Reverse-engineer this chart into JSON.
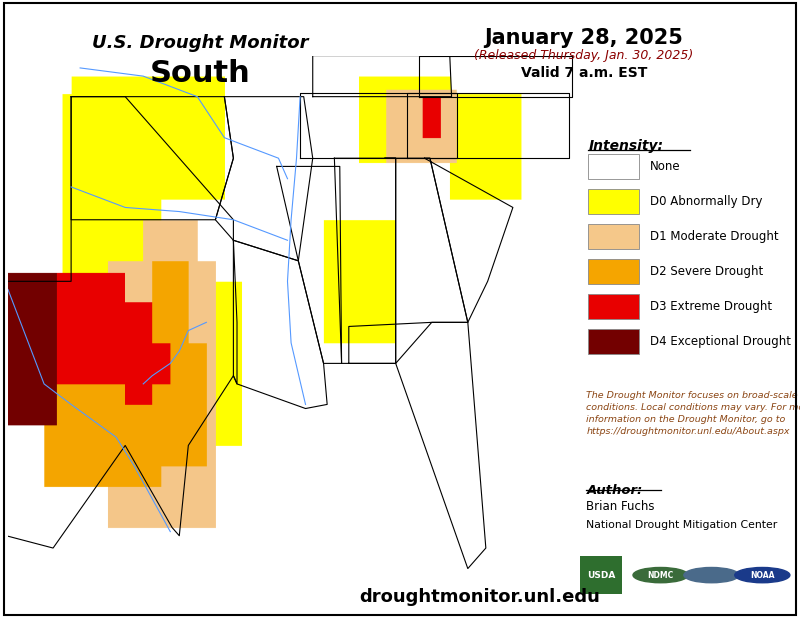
{
  "title_line1": "U.S. Drought Monitor",
  "title_line2": "South",
  "date_line1": "January 28, 2025",
  "date_line2": "(Released Thursday, Jan. 30, 2025)",
  "date_line3": "Valid 7 a.m. EST",
  "legend_title": "Intensity:",
  "legend_items": [
    {
      "label": "None",
      "color": "#FFFFFF",
      "edgecolor": "#AAAAAA"
    },
    {
      "label": "D0 Abnormally Dry",
      "color": "#FFFF00",
      "edgecolor": "#AAAAAA"
    },
    {
      "label": "D1 Moderate Drought",
      "color": "#F5C88A",
      "edgecolor": "#AAAAAA"
    },
    {
      "label": "D2 Severe Drought",
      "color": "#F5A500",
      "edgecolor": "#AAAAAA"
    },
    {
      "label": "D3 Extreme Drought",
      "color": "#E80000",
      "edgecolor": "#AAAAAA"
    },
    {
      "label": "D4 Exceptional Drought",
      "color": "#730000",
      "edgecolor": "#AAAAAA"
    }
  ],
  "disclaimer_text": "The Drought Monitor focuses on broad-scale\nconditions. Local conditions may vary. For more\ninformation on the Drought Monitor, go to\nhttps://droughtmonitor.unl.edu/About.aspx",
  "author_title": "Author:",
  "author_name": "Brian Fuchs",
  "author_org": "National Drought Mitigation Center",
  "website": "droughtmonitor.unl.edu",
  "background_color": "#FFFFFF",
  "title_color": "#000000",
  "date_color": "#000000",
  "date_color2": "#8B0000",
  "legend_title_color": "#000000",
  "legend_text_color": "#000000",
  "disclaimer_color": "#8B4513",
  "website_color": "#000000",
  "fig_width": 8.0,
  "fig_height": 6.18,
  "lon_min": -106.5,
  "lon_max": -75.0,
  "lat_min": 25.0,
  "lat_max": 37.5
}
